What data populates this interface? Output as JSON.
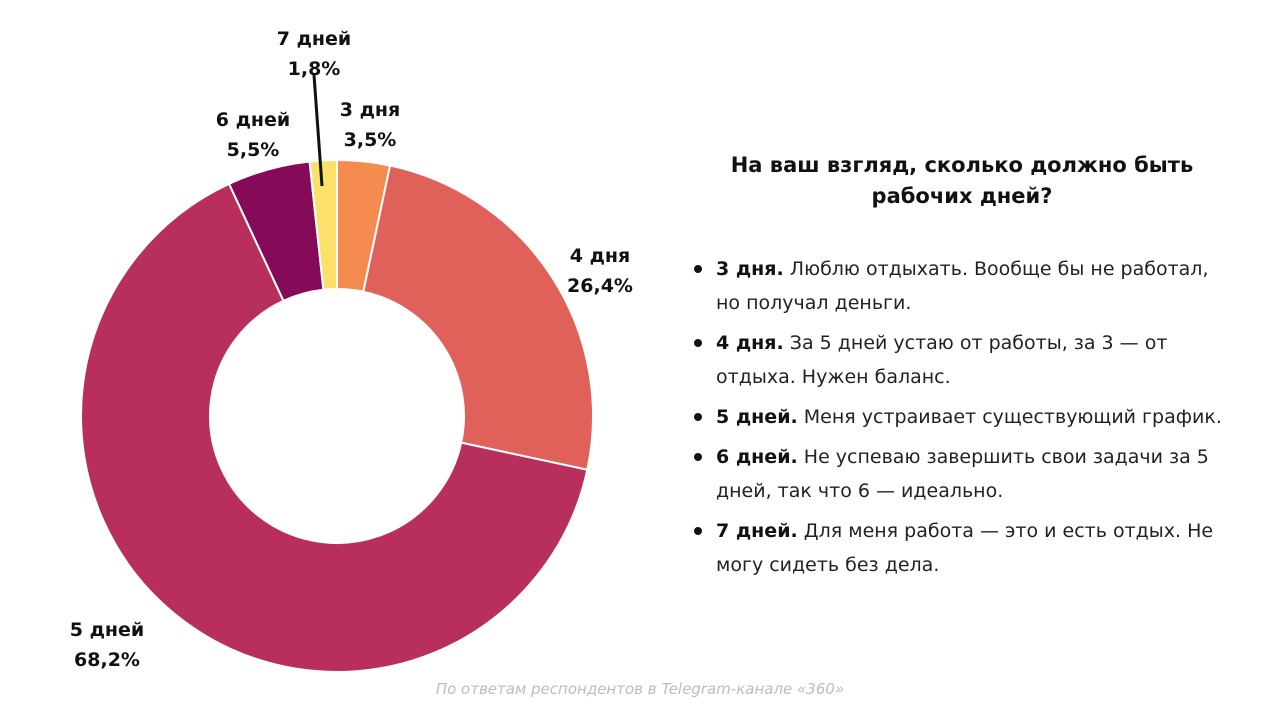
{
  "chart_data": {
    "type": "pie",
    "variant": "donut",
    "slices": [
      {
        "label": "3 дня",
        "value": 3.5,
        "value_label": "3,5%",
        "color": "#F58B4E"
      },
      {
        "label": "4 дня",
        "value": 26.4,
        "value_label": "26,4%",
        "color": "#E0605A"
      },
      {
        "label": "5 дней",
        "value": 68.2,
        "value_label": "68,2%",
        "color": "#B82E5C"
      },
      {
        "label": "6 дней",
        "value": 5.5,
        "value_label": "5,5%",
        "color": "#850A58"
      },
      {
        "label": "7 дней",
        "value": 1.8,
        "value_label": "1,8%",
        "color": "#FBE06A"
      }
    ],
    "start": "top",
    "direction": "clockwise",
    "legend": "none"
  },
  "panel": {
    "title": "На ваш взгляд, сколько должно быть рабочих дней?",
    "answers": [
      {
        "label": "3 дня.",
        "text": "Люблю отдыхать. Вообще бы не работал, но получал деньги."
      },
      {
        "label": "4 дня.",
        "text": "За 5 дней устаю от работы, за 3 — от отдыха. Нужен баланс."
      },
      {
        "label": "5 дней.",
        "text": "Меня устраивает существующий график."
      },
      {
        "label": "6 дней.",
        "text": "Не успеваю завершить свои задачи за 5 дней, так что 6 — идеально."
      },
      {
        "label": "7 дней.",
        "text": "Для меня работа — это и есть отдых. Не могу сидеть без дела."
      }
    ]
  },
  "footer": {
    "source": "По ответам респондентов в Telegram-канале «360»"
  }
}
